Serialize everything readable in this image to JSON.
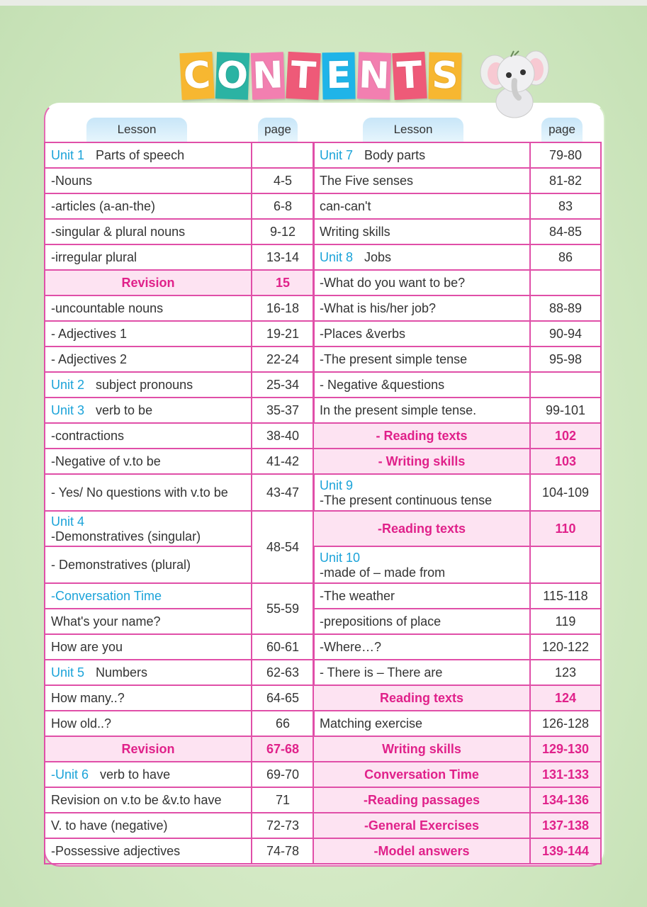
{
  "title": {
    "letters": [
      "C",
      "O",
      "N",
      "T",
      "E",
      "N",
      "T",
      "S"
    ],
    "colors": [
      "#f7b731",
      "#2bb3a3",
      "#f27fb0",
      "#ee5a78",
      "#1fb4e8",
      "#f27fb0",
      "#ee5a78",
      "#f7b731"
    ]
  },
  "headers": {
    "lesson": "Lesson",
    "page": "page"
  },
  "colors": {
    "border": "#e04fa8",
    "highlight_bg": "#fde3f2",
    "highlight_text": "#e0218a",
    "unit": "#1ba3d9"
  },
  "left": [
    {
      "unit": "Unit 1",
      "text": "Parts of speech",
      "page": ""
    },
    {
      "text": "-Nouns",
      "page": "4-5"
    },
    {
      "text": "-articles (a-an-the)",
      "page": "6-8"
    },
    {
      "text": "-singular & plural nouns",
      "page": "9-12"
    },
    {
      "text": "-irregular plural",
      "page": "13-14"
    },
    {
      "text": "Revision",
      "page": "15",
      "highlight": true
    },
    {
      "text": "-uncountable nouns",
      "page": "16-18"
    },
    {
      "text": "- Adjectives 1",
      "page": "19-21"
    },
    {
      "text": "- Adjectives 2",
      "page": "22-24"
    },
    {
      "unit": "Unit 2",
      "text": "subject pronouns",
      "page": "25-34"
    },
    {
      "unit": "Unit 3",
      "text": "verb to be",
      "page": "35-37"
    },
    {
      "text": "-contractions",
      "page": "38-40"
    },
    {
      "text": "-Negative of v.to be",
      "page": "41-42"
    },
    {
      "text": "- Yes/ No questions with v.to be",
      "page": "43-47"
    },
    {
      "unit": "Unit 4",
      "text": "-Demonstratives (singular)",
      "page": "48-54",
      "page_rows": 2
    },
    {
      "text": "- Demonstratives (plural)"
    },
    {
      "unit": "-Conversation Time",
      "text": "",
      "page": "55-59",
      "page_rows": 2
    },
    {
      "text": "What's your name?"
    },
    {
      "text": "How are you",
      "page": "60-61"
    },
    {
      "unit": "Unit 5",
      "text": "Numbers",
      "page": "62-63"
    },
    {
      "text": "How many..?",
      "page": "64-65"
    },
    {
      "text": "How old..?",
      "page": "66"
    },
    {
      "text": "Revision",
      "page": "67-68",
      "highlight": true
    },
    {
      "unit": "-Unit 6",
      "text": "verb to have",
      "page": "69-70"
    },
    {
      "text": "Revision on v.to be &v.to have",
      "page": "71"
    },
    {
      "text": "V. to have (negative)",
      "page": "72-73"
    },
    {
      "text": "-Possessive adjectives",
      "page": "74-78"
    }
  ],
  "right": [
    {
      "unit": "Unit 7",
      "text": "Body parts",
      "page": "79-80"
    },
    {
      "text": "The Five senses",
      "page": "81-82"
    },
    {
      "text": "can-can't",
      "page": "83"
    },
    {
      "text": "Writing skills",
      "page": "84-85"
    },
    {
      "unit": "Unit 8",
      "text": "Jobs",
      "page": "86"
    },
    {
      "text": "-What do you want to be?",
      "page": ""
    },
    {
      "text": "-What is his/her job?",
      "page": "88-89"
    },
    {
      "text": "-Places &verbs",
      "page": "90-94"
    },
    {
      "text": "-The present simple tense",
      "page": "95-98"
    },
    {
      "text": "- Negative &questions",
      "page": ""
    },
    {
      "text": "In the present simple tense.",
      "page": "99-101"
    },
    {
      "text": "- Reading texts",
      "page": "102",
      "highlight": true
    },
    {
      "text": "- Writing skills",
      "page": "103",
      "highlight": true
    },
    {
      "unit": "Unit 9",
      "text": "-The present continuous tense",
      "page": "104-109"
    },
    {
      "text": "-Reading texts",
      "page": "110",
      "highlight": true
    },
    {
      "unit": "Unit 10",
      "text": "-made of – made from",
      "page": ""
    },
    {
      "text": "-The weather",
      "page": "115-118"
    },
    {
      "text": "-prepositions of place",
      "page": "119"
    },
    {
      "text": "-Where…?",
      "page": "120-122"
    },
    {
      "text": "- There is – There are",
      "page": "123"
    },
    {
      "text": "Reading texts",
      "page": "124",
      "highlight": true
    },
    {
      "text": "Matching exercise",
      "page": "126-128"
    },
    {
      "text": "Writing skills",
      "page": "129-130",
      "highlight": true
    },
    {
      "text": "Conversation Time",
      "page": "131-133",
      "highlight": true
    },
    {
      "text": "-Reading passages",
      "page": "134-136",
      "highlight": true
    },
    {
      "text": "-General Exercises",
      "page": "137-138",
      "highlight": true
    },
    {
      "text": "-Model answers",
      "page": "139-144",
      "highlight": true
    }
  ]
}
